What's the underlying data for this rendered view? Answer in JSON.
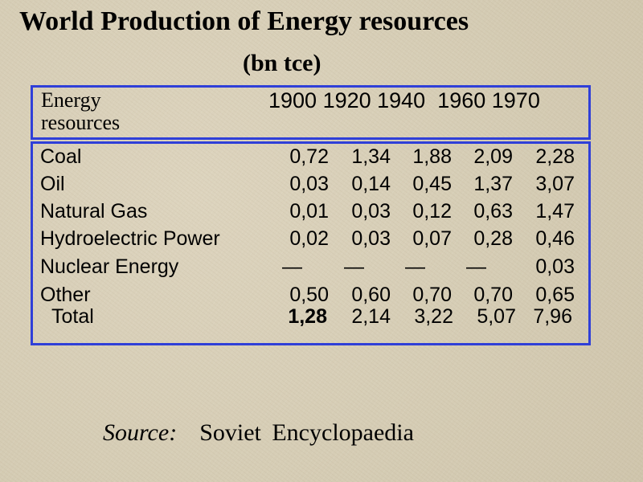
{
  "title": "World Production of Energy resources",
  "subtitle": "(bn tce)",
  "table": {
    "header_label_line1": "Energy",
    "header_label_line2": "resources",
    "years": "1900 1920 1940  1960 1970",
    "rows": [
      {
        "name": "Coal",
        "values": [
          "0,72",
          "1,34",
          "1,88",
          "2,09",
          "2,28"
        ]
      },
      {
        "name": "Oil",
        "values": [
          "0,03",
          "0,14",
          "0,45",
          "1,37",
          "3,07"
        ]
      },
      {
        "name": "Natural Gas",
        "values": [
          "0,01",
          "0,03",
          "0,12",
          "0,63",
          "1,47"
        ]
      },
      {
        "name": "Hydroelectric Power",
        "values": [
          "0,02",
          "0,03",
          "0,07",
          "0,28",
          "0,46"
        ]
      },
      {
        "name": "Nuclear Energy",
        "values": [
          "—",
          "—",
          "—",
          "—",
          "0,03"
        ]
      },
      {
        "name": "Other",
        "values": [
          "0,50",
          "0,60",
          "0,70",
          "0,70",
          "0,65"
        ]
      }
    ],
    "total": {
      "name": "Total",
      "values": [
        "1,28",
        "2,14",
        "3,22",
        "5,07",
        "7,96"
      ]
    }
  },
  "source": {
    "label": "Source:",
    "value": "Soviet Encyclopaedia"
  },
  "colors": {
    "background": "#d8cfb8",
    "border": "#2f3fd8"
  }
}
